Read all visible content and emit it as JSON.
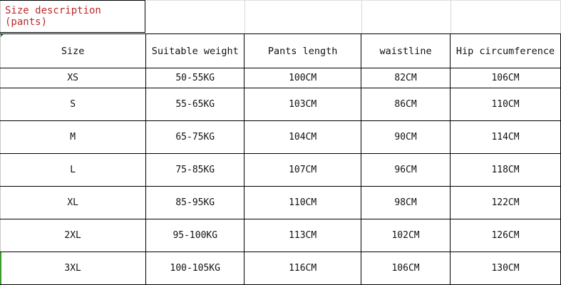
{
  "title": "Size description (pants)",
  "title_color": "#c0282a",
  "headers": [
    "Size",
    "Suitable weight",
    "Pants length",
    "waistline",
    "Hip circumference"
  ],
  "rows": [
    [
      "XS",
      "50-55KG",
      "100CM",
      "82CM",
      "106CM"
    ],
    [
      "S",
      "55-65KG",
      "103CM",
      "86CM",
      "110CM"
    ],
    [
      "M",
      "65-75KG",
      "104CM",
      "90CM",
      "114CM"
    ],
    [
      "L",
      "75-85KG",
      "107CM",
      "96CM",
      "118CM"
    ],
    [
      "XL",
      "85-95KG",
      "110CM",
      "98CM",
      "122CM"
    ],
    [
      "2XL",
      "95-100KG",
      "113CM",
      "102CM",
      "126CM"
    ],
    [
      "3XL",
      "100-105KG",
      "116CM",
      "106CM",
      "130CM"
    ]
  ]
}
